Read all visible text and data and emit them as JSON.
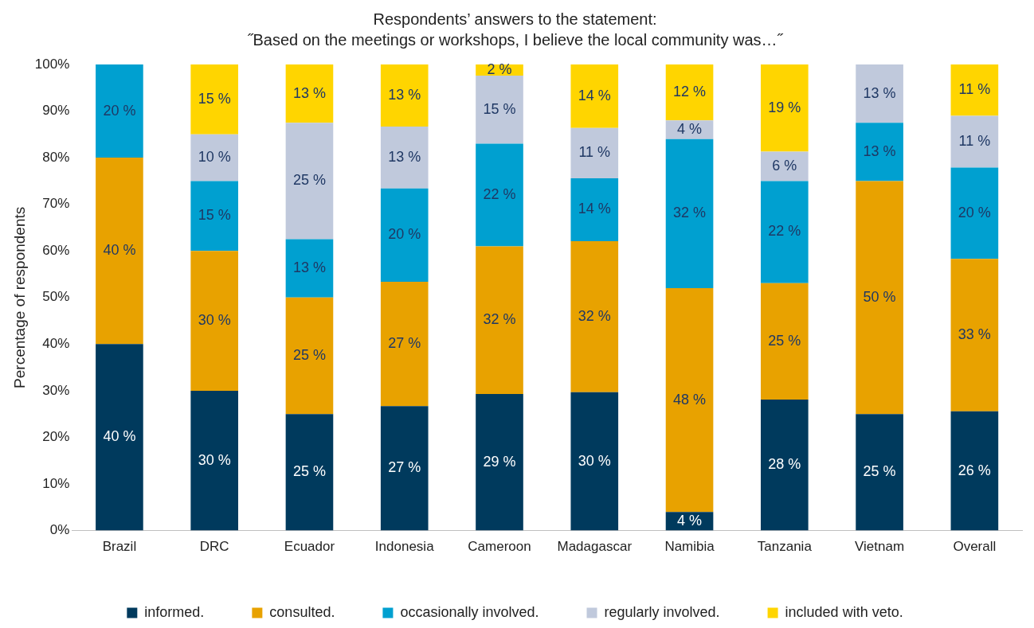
{
  "chart_data": {
    "type": "bar",
    "stacked": true,
    "title": "Respondents’ answers to the statement:",
    "subtitle": "˝Based on the meetings or workshops, I believe the local community was…˝",
    "ylabel": "Percentage of respondents",
    "categories": [
      "Brazil",
      "DRC",
      "Ecuador",
      "Indonesia",
      "Cameroon",
      "Madagascar",
      "Namibia",
      "Tanzania",
      "Vietnam",
      "Overall"
    ],
    "ylim": [
      0,
      100
    ],
    "yticks": [
      {
        "value": 0,
        "label": "0%"
      },
      {
        "value": 10,
        "label": "10%"
      },
      {
        "value": 20,
        "label": "20%"
      },
      {
        "value": 30,
        "label": "30%"
      },
      {
        "value": 40,
        "label": "40%"
      },
      {
        "value": 50,
        "label": "50%"
      },
      {
        "value": 60,
        "label": "60%"
      },
      {
        "value": 70,
        "label": "70%"
      },
      {
        "value": 80,
        "label": "80%"
      },
      {
        "value": 90,
        "label": "90%"
      },
      {
        "value": 100,
        "label": "100%"
      }
    ],
    "grid": false,
    "legend": "bottom",
    "series": [
      {
        "name": "informed.",
        "color": "#003a5d",
        "values": [
          40,
          30,
          25,
          26.7,
          29.3,
          29.7,
          4,
          28.1,
          25,
          25.6
        ],
        "value_labels": [
          "40 %",
          "30 %",
          "25 %",
          "27 %",
          "29 %",
          "30 %",
          "4 %",
          "28 %",
          "25 %",
          "26 %"
        ]
      },
      {
        "name": "consulted.",
        "color": "#e8a200",
        "values": [
          40,
          30,
          25,
          26.7,
          31.7,
          32.4,
          48,
          25,
          50,
          32.7
        ],
        "value_labels": [
          "40 %",
          "30 %",
          "25 %",
          "27 %",
          "32 %",
          "32 %",
          "48 %",
          "25 %",
          "50 %",
          "33 %"
        ]
      },
      {
        "name": "occasionally involved.",
        "color": "#00a0d0",
        "values": [
          20,
          15,
          12.5,
          20,
          22,
          13.5,
          32,
          21.9,
          12.5,
          19.6
        ],
        "value_labels": [
          "20 %",
          "15 %",
          "13 %",
          "20 %",
          "22 %",
          "14 %",
          "32 %",
          "22 %",
          "13 %",
          "20 %"
        ]
      },
      {
        "name": "regularly involved.",
        "color": "#c0c9dc",
        "values": [
          null,
          10,
          25,
          13.3,
          14.6,
          10.8,
          4,
          6.3,
          12.5,
          11.1
        ],
        "value_labels": [
          null,
          "10 %",
          "25 %",
          "13 %",
          "15 %",
          "11 %",
          "4 %",
          "6 %",
          "13 %",
          "11 %"
        ]
      },
      {
        "name": "included with veto.",
        "color": "#ffd500",
        "values": [
          null,
          15,
          12.5,
          13.3,
          2.4,
          13.6,
          12,
          18.7,
          null,
          11
        ],
        "value_labels": [
          null,
          "15 %",
          "13 %",
          "13 %",
          "2 %",
          "14 %",
          "12 %",
          "19 %",
          null,
          "11 %"
        ]
      }
    ]
  }
}
